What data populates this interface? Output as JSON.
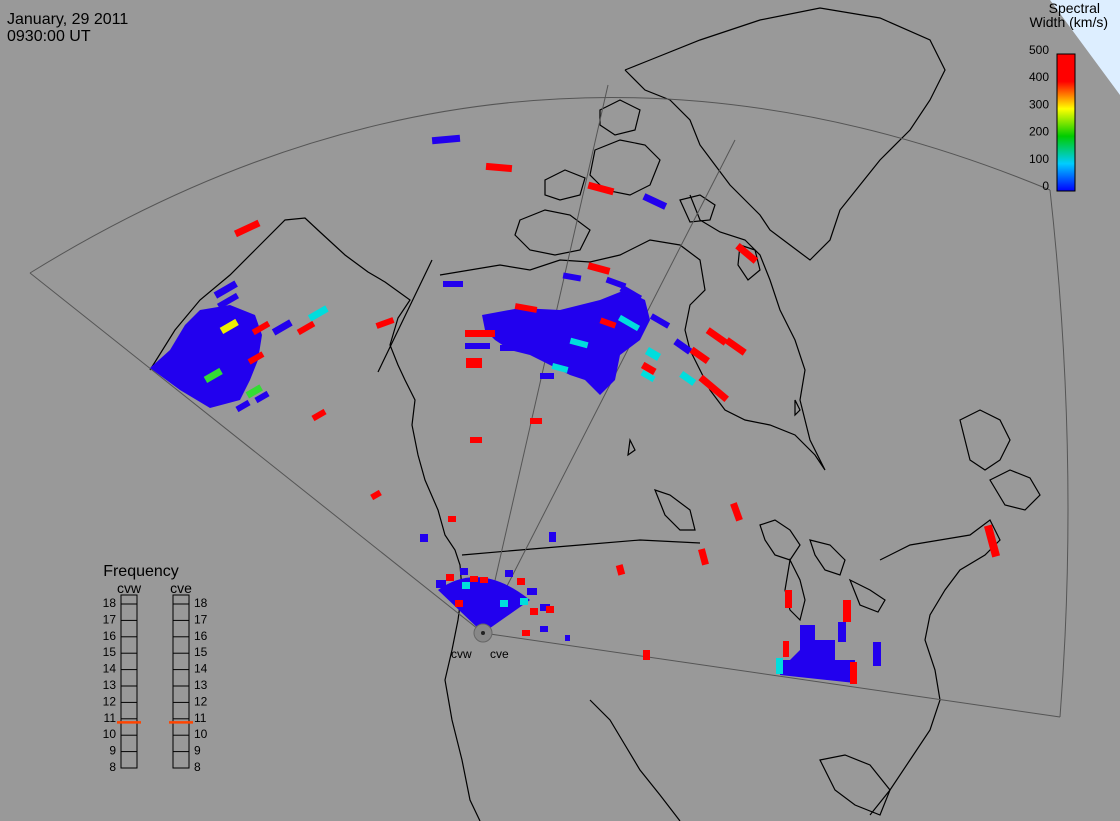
{
  "header": {
    "date": "January, 29 2011",
    "time": "0930:00 UT"
  },
  "colorbar": {
    "title_line1": "Spectral",
    "title_line2": "Width (km/s)",
    "ticks": [
      "500",
      "400",
      "300",
      "200",
      "100",
      "0"
    ]
  },
  "stations": {
    "west": "cvw",
    "east": "cve"
  },
  "frequency_panel": {
    "title": "Frequency",
    "left_label": "cvw",
    "right_label": "cve",
    "scale": [
      "18",
      "17",
      "16",
      "15",
      "14",
      "13",
      "12",
      "11",
      "10",
      "9",
      "8"
    ],
    "cvw_frequency": 10.6,
    "cve_frequency": 10.6
  },
  "colors": {
    "background": "#999999",
    "blue": "#2200ee",
    "red": "#ff0000",
    "cyan": "#00dddd",
    "green": "#33dd33",
    "yellow": "#eeee00",
    "marker": "#ff4400"
  }
}
